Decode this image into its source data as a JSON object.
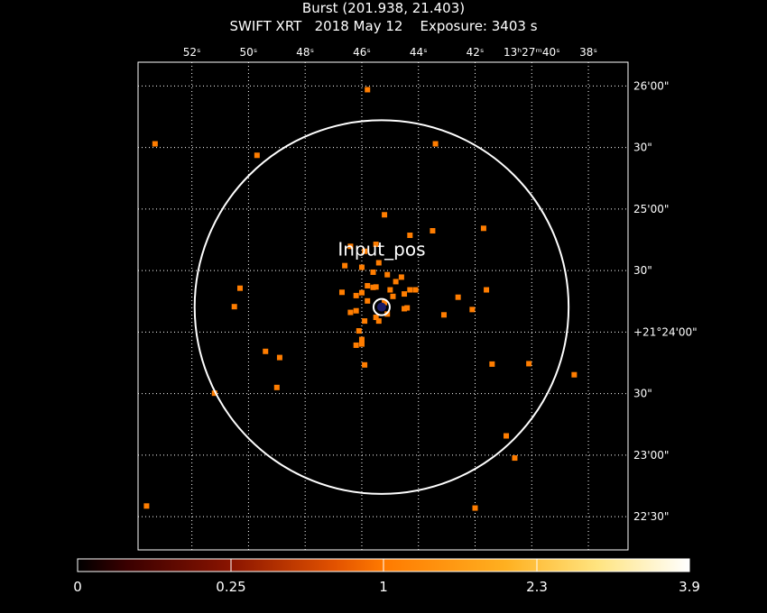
{
  "title": {
    "line1": "Burst (201.938, 21.403)",
    "line2": "SWIFT XRT   2018 May 12    Exposure: 3403 s"
  },
  "chart_data": {
    "type": "scatter",
    "title": "Burst (201.938, 21.403)",
    "subtitle": "SWIFT XRT   2018 May 12    Exposure: 3403 s",
    "x_axis": {
      "units": "RA (h m s, 13h27m)",
      "range_sec": [
        53.9,
        36.6
      ],
      "ticks": [
        {
          "v": 52,
          "label": "52ˢ"
        },
        {
          "v": 50,
          "label": "50ˢ"
        },
        {
          "v": 48,
          "label": "48ˢ"
        },
        {
          "v": 46,
          "label": "46ˢ"
        },
        {
          "v": 44,
          "label": "44ˢ"
        },
        {
          "v": 42,
          "label": "42ˢ"
        },
        {
          "v": 40,
          "label": "13ʰ27ᵐ40ˢ"
        },
        {
          "v": 38,
          "label": "38ˢ"
        }
      ]
    },
    "y_axis": {
      "units": "Dec (+21°)",
      "range_arcsec": [
        81.9,
        200.8
      ],
      "ticks": [
        {
          "v": 90,
          "label": "22'30\""
        },
        {
          "v": 105,
          "label": "23'00\""
        },
        {
          "v": 120,
          "label": "30\""
        },
        {
          "v": 135,
          "label": "+21°24'00\""
        },
        {
          "v": 150,
          "label": "30\""
        },
        {
          "v": 165,
          "label": "25'00\""
        },
        {
          "v": 180,
          "label": "30\""
        },
        {
          "v": 195,
          "label": "26'00\""
        }
      ]
    },
    "grid": true,
    "colorbar": {
      "labels": [
        "0",
        "0.25",
        "1",
        "2.3",
        "3.9"
      ],
      "colors": [
        "#000000",
        "#5a0000",
        "#a32800",
        "#ff6a00",
        "#ffaa00",
        "#ffe070",
        "#ffffff"
      ]
    },
    "annotation": {
      "label": "Input_pos",
      "ra_sec": 45.3,
      "dec_arcsec": 141.1,
      "radius_arcsec": 9.9
    },
    "points": [
      {
        "x": 45.8,
        "y": 194.1
      },
      {
        "x": 53.3,
        "y": 180.9
      },
      {
        "x": 49.7,
        "y": 178.1
      },
      {
        "x": 43.4,
        "y": 180.9
      },
      {
        "x": 41.7,
        "y": 160.3
      },
      {
        "x": 45.2,
        "y": 163.6
      },
      {
        "x": 43.5,
        "y": 159.7
      },
      {
        "x": 44.3,
        "y": 158.6
      },
      {
        "x": 45.5,
        "y": 156.4
      },
      {
        "x": 46.4,
        "y": 155.9
      },
      {
        "x": 45.9,
        "y": 154.7
      },
      {
        "x": 46.6,
        "y": 151.2
      },
      {
        "x": 45.4,
        "y": 151.9
      },
      {
        "x": 46.0,
        "y": 150.8
      },
      {
        "x": 45.6,
        "y": 149.6
      },
      {
        "x": 45.1,
        "y": 149.0
      },
      {
        "x": 44.6,
        "y": 148.4
      },
      {
        "x": 44.8,
        "y": 147.3
      },
      {
        "x": 44.3,
        "y": 145.3
      },
      {
        "x": 44.1,
        "y": 145.3
      },
      {
        "x": 45.0,
        "y": 145.3
      },
      {
        "x": 45.6,
        "y": 145.9
      },
      {
        "x": 45.8,
        "y": 146.3
      },
      {
        "x": 46.0,
        "y": 144.6
      },
      {
        "x": 46.2,
        "y": 143.9
      },
      {
        "x": 46.7,
        "y": 144.7
      },
      {
        "x": 44.5,
        "y": 144.3
      },
      {
        "x": 42.6,
        "y": 143.5
      },
      {
        "x": 41.6,
        "y": 145.3
      },
      {
        "x": 42.1,
        "y": 140.5
      },
      {
        "x": 43.1,
        "y": 139.2
      },
      {
        "x": 44.4,
        "y": 140.9
      },
      {
        "x": 44.5,
        "y": 140.7
      },
      {
        "x": 45.1,
        "y": 139.4
      },
      {
        "x": 45.5,
        "y": 138.6
      },
      {
        "x": 45.9,
        "y": 137.7
      },
      {
        "x": 45.4,
        "y": 137.7
      },
      {
        "x": 46.2,
        "y": 140.2
      },
      {
        "x": 46.4,
        "y": 139.8
      },
      {
        "x": 46.1,
        "y": 135.3
      },
      {
        "x": 46.0,
        "y": 133.2
      },
      {
        "x": 46.0,
        "y": 132.1
      },
      {
        "x": 46.2,
        "y": 131.8
      },
      {
        "x": 45.9,
        "y": 127.0
      },
      {
        "x": 48.9,
        "y": 128.8
      },
      {
        "x": 50.3,
        "y": 145.7
      },
      {
        "x": 50.5,
        "y": 141.2
      },
      {
        "x": 49.4,
        "y": 130.3
      },
      {
        "x": 49.0,
        "y": 121.5
      },
      {
        "x": 51.2,
        "y": 120.1
      },
      {
        "x": 41.4,
        "y": 127.2
      },
      {
        "x": 40.1,
        "y": 127.3
      },
      {
        "x": 38.5,
        "y": 124.6
      },
      {
        "x": 40.9,
        "y": 109.7
      },
      {
        "x": 40.6,
        "y": 104.3
      },
      {
        "x": 42.0,
        "y": 92.1
      },
      {
        "x": 53.6,
        "y": 92.6
      },
      {
        "x": 45.5,
        "y": 146.0
      },
      {
        "x": 44.9,
        "y": 143.7
      },
      {
        "x": 45.8,
        "y": 142.6
      },
      {
        "x": 45.2,
        "y": 142.2
      }
    ]
  }
}
